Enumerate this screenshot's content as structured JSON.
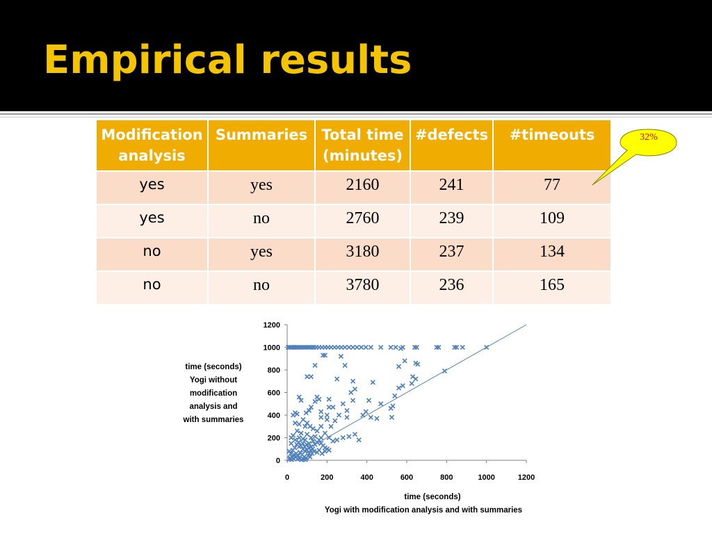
{
  "slide": {
    "title": "Empirical results"
  },
  "table": {
    "headers": [
      "Modification analysis",
      "Summaries",
      "Total time (minutes)",
      "#defects",
      "#timeouts"
    ],
    "rows": [
      [
        "yes",
        "yes",
        "2160",
        "241",
        "77"
      ],
      [
        "yes",
        "no",
        "2760",
        "239",
        "109"
      ],
      [
        "no",
        "yes",
        "3180",
        "237",
        "134"
      ],
      [
        "no",
        "no",
        "3780",
        "236",
        "165"
      ]
    ]
  },
  "callout": {
    "text": "32%",
    "fill_color": "#ffff00",
    "text_color": "#e00000"
  },
  "colors": {
    "header_bg": "#000000",
    "title": "#f5c400",
    "table_header": "#f0ac00",
    "row_odd": "#fadcc8",
    "row_even": "#fdeee6",
    "marker": "#4f81bd"
  },
  "chart_data": {
    "type": "scatter",
    "xlabel": "time (seconds) Yogi with modification analysis and with summaries",
    "ylabel": "time (seconds) Yogi without modification analysis and with summaries",
    "xlabel_lines": [
      "time (seconds)",
      "Yogi with modification analysis and with summaries"
    ],
    "ylabel_lines": [
      "time (seconds)",
      "Yogi without",
      "modification",
      "analysis and",
      "with summaries"
    ],
    "xlim": [
      0,
      1200
    ],
    "ylim": [
      0,
      1200
    ],
    "xticks": [
      0,
      200,
      400,
      600,
      800,
      1000,
      1200
    ],
    "yticks": [
      0,
      200,
      400,
      600,
      800,
      1000,
      1200
    ],
    "marker": "x",
    "grid": false,
    "reference_line": {
      "x": [
        0,
        1200
      ],
      "y": [
        0,
        1200
      ]
    },
    "points": [
      [
        5,
        1000
      ],
      [
        12,
        1000
      ],
      [
        20,
        1000
      ],
      [
        28,
        1000
      ],
      [
        35,
        1000
      ],
      [
        42,
        1000
      ],
      [
        50,
        1000
      ],
      [
        58,
        1000
      ],
      [
        66,
        1000
      ],
      [
        74,
        1000
      ],
      [
        82,
        1000
      ],
      [
        90,
        1000
      ],
      [
        98,
        1000
      ],
      [
        106,
        1000
      ],
      [
        114,
        1000
      ],
      [
        124,
        1000
      ],
      [
        134,
        1000
      ],
      [
        146,
        1000
      ],
      [
        160,
        1000
      ],
      [
        175,
        1000
      ],
      [
        190,
        1000
      ],
      [
        205,
        1000
      ],
      [
        220,
        1000
      ],
      [
        238,
        1000
      ],
      [
        255,
        1000
      ],
      [
        272,
        1000
      ],
      [
        290,
        1000
      ],
      [
        310,
        1000
      ],
      [
        330,
        1000
      ],
      [
        350,
        1000
      ],
      [
        372,
        1000
      ],
      [
        395,
        1000
      ],
      [
        420,
        1000
      ],
      [
        470,
        1000
      ],
      [
        520,
        1000
      ],
      [
        545,
        1000
      ],
      [
        580,
        1000
      ],
      [
        640,
        1000
      ],
      [
        650,
        1000
      ],
      [
        750,
        1000
      ],
      [
        760,
        1000
      ],
      [
        840,
        1000
      ],
      [
        850,
        1000
      ],
      [
        880,
        1000
      ],
      [
        1000,
        1000
      ],
      [
        140,
        840
      ],
      [
        180,
        930
      ],
      [
        190,
        930
      ],
      [
        270,
        920
      ],
      [
        290,
        840
      ],
      [
        570,
        990
      ],
      [
        560,
        830
      ],
      [
        590,
        880
      ],
      [
        645,
        860
      ],
      [
        655,
        850
      ],
      [
        790,
        790
      ],
      [
        100,
        740
      ],
      [
        120,
        740
      ],
      [
        250,
        720
      ],
      [
        330,
        700
      ],
      [
        430,
        690
      ],
      [
        630,
        740
      ],
      [
        645,
        720
      ],
      [
        625,
        680
      ],
      [
        560,
        640
      ],
      [
        580,
        660
      ],
      [
        540,
        570
      ],
      [
        530,
        480
      ],
      [
        520,
        460
      ],
      [
        525,
        380
      ],
      [
        470,
        500
      ],
      [
        410,
        530
      ],
      [
        395,
        430
      ],
      [
        340,
        630
      ],
      [
        320,
        600
      ],
      [
        330,
        530
      ],
      [
        280,
        500
      ],
      [
        260,
        400
      ],
      [
        240,
        350
      ],
      [
        300,
        440
      ],
      [
        300,
        380
      ],
      [
        380,
        400
      ],
      [
        420,
        380
      ],
      [
        450,
        370
      ],
      [
        210,
        540
      ],
      [
        210,
        470
      ],
      [
        230,
        470
      ],
      [
        200,
        400
      ],
      [
        200,
        360
      ],
      [
        170,
        430
      ],
      [
        170,
        380
      ],
      [
        150,
        560
      ],
      [
        160,
        540
      ],
      [
        140,
        520
      ],
      [
        120,
        470
      ],
      [
        110,
        440
      ],
      [
        95,
        420
      ],
      [
        70,
        530
      ],
      [
        60,
        560
      ],
      [
        50,
        410
      ],
      [
        40,
        420
      ],
      [
        30,
        400
      ],
      [
        20,
        200
      ],
      [
        40,
        330
      ],
      [
        60,
        320
      ],
      [
        80,
        360
      ],
      [
        90,
        300
      ],
      [
        100,
        330
      ],
      [
        115,
        300
      ],
      [
        130,
        280
      ],
      [
        150,
        260
      ],
      [
        170,
        300
      ],
      [
        190,
        240
      ],
      [
        210,
        200
      ],
      [
        230,
        170
      ],
      [
        250,
        180
      ],
      [
        280,
        200
      ],
      [
        310,
        210
      ],
      [
        340,
        230
      ],
      [
        360,
        180
      ],
      [
        220,
        300
      ],
      [
        170,
        150
      ],
      [
        140,
        140
      ],
      [
        120,
        120
      ],
      [
        110,
        60
      ],
      [
        10,
        80
      ],
      [
        20,
        150
      ],
      [
        30,
        220
      ],
      [
        40,
        180
      ],
      [
        50,
        260
      ],
      [
        60,
        200
      ],
      [
        70,
        240
      ],
      [
        80,
        190
      ],
      [
        90,
        180
      ],
      [
        100,
        230
      ],
      [
        110,
        150
      ],
      [
        120,
        200
      ],
      [
        130,
        170
      ],
      [
        140,
        210
      ],
      [
        150,
        160
      ],
      [
        160,
        180
      ],
      [
        170,
        200
      ],
      [
        180,
        130
      ],
      [
        190,
        110
      ],
      [
        200,
        100
      ],
      [
        210,
        90
      ],
      [
        60,
        120
      ],
      [
        80,
        100
      ],
      [
        90,
        80
      ],
      [
        100,
        90
      ],
      [
        45,
        60
      ],
      [
        55,
        40
      ],
      [
        65,
        70
      ],
      [
        75,
        50
      ],
      [
        85,
        30
      ],
      [
        95,
        20
      ],
      [
        105,
        40
      ],
      [
        115,
        30
      ],
      [
        125,
        60
      ],
      [
        135,
        80
      ],
      [
        15,
        20
      ],
      [
        25,
        30
      ],
      [
        35,
        50
      ],
      [
        18,
        60
      ],
      [
        28,
        90
      ],
      [
        38,
        110
      ],
      [
        48,
        140
      ],
      [
        58,
        160
      ],
      [
        68,
        130
      ],
      [
        78,
        150
      ],
      [
        88,
        120
      ],
      [
        98,
        140
      ],
      [
        108,
        110
      ],
      [
        118,
        90
      ],
      [
        128,
        100
      ],
      [
        12,
        10
      ],
      [
        22,
        5
      ],
      [
        32,
        15
      ],
      [
        42,
        25
      ],
      [
        52,
        10
      ],
      [
        62,
        15
      ],
      [
        72,
        5
      ],
      [
        82,
        10
      ],
      [
        92,
        5
      ],
      [
        150,
        70
      ],
      [
        160,
        90
      ],
      [
        175,
        60
      ],
      [
        190,
        80
      ]
    ]
  }
}
